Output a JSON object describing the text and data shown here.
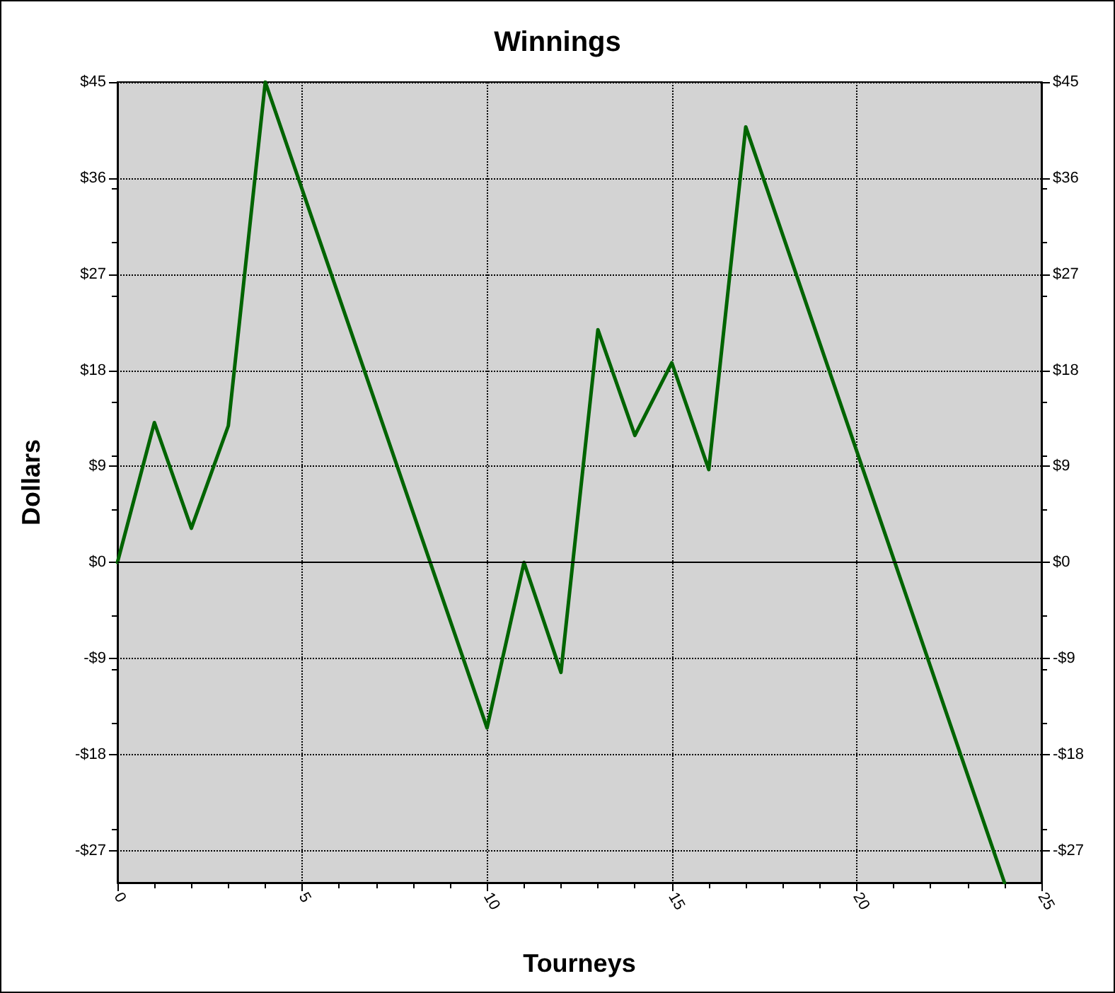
{
  "chart_data": {
    "type": "line",
    "title": "Winnings",
    "xlabel": "Tourneys",
    "ylabel": "Dollars",
    "x": [
      0,
      1,
      2,
      3,
      4,
      10,
      11,
      12,
      13,
      14,
      15,
      16,
      17,
      24
    ],
    "series": [
      {
        "color": "#006400",
        "values": [
          0,
          13.1,
          3.2,
          12.8,
          45,
          -15.5,
          0,
          -10.3,
          21.8,
          11.9,
          18.7,
          8.7,
          40.8,
          -30
        ]
      }
    ],
    "xlim": [
      0,
      25
    ],
    "xticks": [
      0,
      5,
      10,
      15,
      20,
      25
    ],
    "ylim": [
      -30,
      45
    ],
    "yticks": [
      {
        "value": -27,
        "label": "-$27"
      },
      {
        "value": -18,
        "label": "-$18"
      },
      {
        "value": -9,
        "label": "-$9"
      },
      {
        "value": 0,
        "label": "$0"
      },
      {
        "value": 9,
        "label": "$9"
      },
      {
        "value": 18,
        "label": "$18"
      },
      {
        "value": 27,
        "label": "$27"
      },
      {
        "value": 36,
        "label": "$36"
      },
      {
        "value": 45,
        "label": "$45"
      }
    ],
    "y2lim": [
      -30,
      45
    ],
    "y2ticks": [
      {
        "value": -27,
        "label": "-$27"
      },
      {
        "value": -18,
        "label": "-$18"
      },
      {
        "value": -9,
        "label": "-$9"
      },
      {
        "value": 0,
        "label": "$0"
      },
      {
        "value": 9,
        "label": "$9"
      },
      {
        "value": 18,
        "label": "$18"
      },
      {
        "value": 27,
        "label": "$27"
      },
      {
        "value": 36,
        "label": "$36"
      },
      {
        "value": 45,
        "label": "$45"
      }
    ],
    "ref_lines": [
      {
        "axis": "y",
        "value": 0,
        "color": "#000000",
        "line_style": "solid"
      }
    ],
    "grid": true,
    "marker": "none",
    "line_style": "solid"
  }
}
